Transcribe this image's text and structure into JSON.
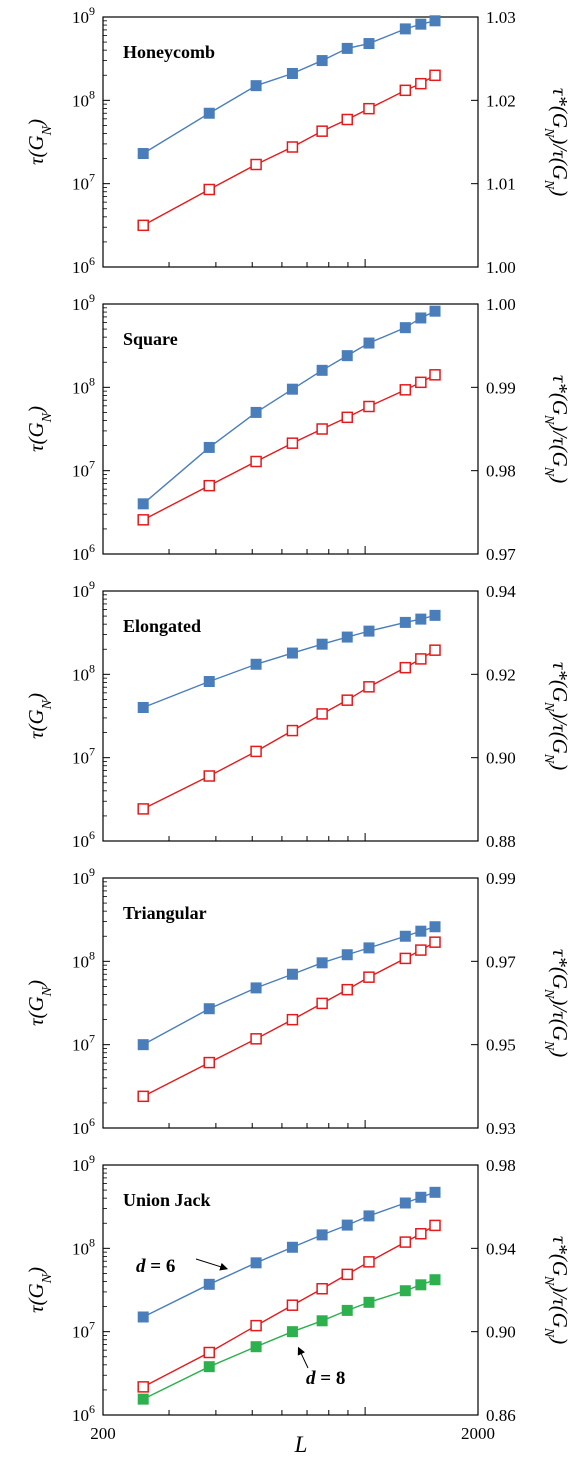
{
  "colors": {
    "blue_series": "#4a7ebb",
    "red_series": "#e41a1c",
    "green_series": "#2db04e",
    "axis": "#000000"
  },
  "chart_data": [
    {
      "type": "line",
      "title": "Honeycomb",
      "ylabel": "τ(G_N)",
      "ylabel_right": "τ*(G_N)/τ(G_N)",
      "xscale": "log",
      "xlim": [
        200,
        2000
      ],
      "yscale": "log",
      "ylim": [
        1000000,
        1000000000
      ],
      "yticks": [
        "10^6",
        "10^7",
        "10^8",
        "10^9"
      ],
      "ylim_right": [
        1.0,
        1.03
      ],
      "yticks_right": [
        "1.00",
        "1.01",
        "1.02",
        "1.03"
      ],
      "series": [
        {
          "axis": "left",
          "marker": "filled-square",
          "color": "#4a7ebb",
          "x": [
            256,
            384,
            512,
            640,
            768,
            896,
            1024,
            1280,
            1408,
            1536
          ],
          "y": [
            23000000,
            70000000,
            150000000,
            210000000,
            300000000,
            420000000,
            480000000,
            720000000,
            820000000,
            900000000
          ]
        },
        {
          "axis": "right",
          "marker": "open-square",
          "color": "#e41a1c",
          "x": [
            256,
            384,
            512,
            640,
            768,
            896,
            1024,
            1280,
            1408,
            1536
          ],
          "y": [
            1.005,
            1.0093,
            1.0123,
            1.0144,
            1.0163,
            1.0177,
            1.019,
            1.0212,
            1.022,
            1.023
          ]
        }
      ]
    },
    {
      "type": "line",
      "title": "Square",
      "ylabel": "τ(G_N)",
      "ylabel_right": "τ*(G_N)/τ(G_N)",
      "xscale": "log",
      "xlim": [
        200,
        2000
      ],
      "yscale": "log",
      "ylim": [
        1000000,
        1000000000
      ],
      "yticks": [
        "10^6",
        "10^7",
        "10^8",
        "10^9"
      ],
      "ylim_right": [
        0.97,
        1.0
      ],
      "yticks_right": [
        "0.97",
        "0.98",
        "0.99",
        "1.00"
      ],
      "series": [
        {
          "axis": "left",
          "marker": "filled-square",
          "color": "#4a7ebb",
          "x": [
            256,
            384,
            512,
            640,
            768,
            896,
            1024,
            1280,
            1408,
            1536
          ],
          "y": [
            4000000,
            19000000,
            50000000,
            95000000,
            160000000,
            240000000,
            340000000,
            520000000,
            680000000,
            820000000
          ]
        },
        {
          "axis": "right",
          "marker": "open-square",
          "color": "#e41a1c",
          "x": [
            256,
            384,
            512,
            640,
            768,
            896,
            1024,
            1280,
            1408,
            1536
          ],
          "y": [
            0.9741,
            0.9782,
            0.9811,
            0.9833,
            0.985,
            0.9864,
            0.9877,
            0.9897,
            0.9906,
            0.9915
          ]
        }
      ]
    },
    {
      "type": "line",
      "title": "Elongated",
      "ylabel": "τ(G_N)",
      "ylabel_right": "τ*(G_N)/τ(G_N)",
      "xscale": "log",
      "xlim": [
        200,
        2000
      ],
      "yscale": "log",
      "ylim": [
        1000000,
        1000000000
      ],
      "yticks": [
        "10^6",
        "10^7",
        "10^8",
        "10^9"
      ],
      "ylim_right": [
        0.88,
        0.94
      ],
      "yticks_right": [
        "0.88",
        "0.90",
        "0.92",
        "0.94"
      ],
      "series": [
        {
          "axis": "left",
          "marker": "filled-square",
          "color": "#4a7ebb",
          "x": [
            256,
            384,
            512,
            640,
            768,
            896,
            1024,
            1280,
            1408,
            1536
          ],
          "y": [
            40000000,
            82000000,
            132000000,
            180000000,
            230000000,
            280000000,
            330000000,
            420000000,
            460000000,
            510000000
          ]
        },
        {
          "axis": "right",
          "marker": "open-square",
          "color": "#e41a1c",
          "x": [
            256,
            384,
            512,
            640,
            768,
            896,
            1024,
            1280,
            1408,
            1536
          ],
          "y": [
            0.8877,
            0.8956,
            0.9015,
            0.9065,
            0.9105,
            0.9138,
            0.917,
            0.9216,
            0.9237,
            0.9258
          ]
        }
      ]
    },
    {
      "type": "line",
      "title": "Triangular",
      "ylabel": "τ(G_N)",
      "ylabel_right": "τ*(G_N)/τ(G_N)",
      "xscale": "log",
      "xlim": [
        200,
        2000
      ],
      "yscale": "log",
      "ylim": [
        1000000,
        1000000000
      ],
      "yticks": [
        "10^6",
        "10^7",
        "10^8",
        "10^9"
      ],
      "ylim_right": [
        0.93,
        0.99
      ],
      "yticks_right": [
        "0.93",
        "0.95",
        "0.97",
        "0.99"
      ],
      "series": [
        {
          "axis": "left",
          "marker": "filled-square",
          "color": "#4a7ebb",
          "x": [
            256,
            384,
            512,
            640,
            768,
            896,
            1024,
            1280,
            1408,
            1536
          ],
          "y": [
            10000000,
            27000000,
            48000000,
            70000000,
            96000000,
            120000000,
            145000000,
            200000000,
            230000000,
            260000000
          ]
        },
        {
          "axis": "right",
          "marker": "open-square",
          "color": "#e41a1c",
          "x": [
            256,
            384,
            512,
            640,
            768,
            896,
            1024,
            1280,
            1408,
            1536
          ],
          "y": [
            0.9376,
            0.9457,
            0.9514,
            0.956,
            0.9599,
            0.9632,
            0.9662,
            0.9707,
            0.9727,
            0.9746
          ]
        }
      ]
    },
    {
      "type": "line",
      "title": "Union Jack",
      "ylabel": "τ(G_N)",
      "ylabel_right": "τ*(G_N)/τ(G_N)",
      "xlabel": "L",
      "xscale": "log",
      "xlim": [
        200,
        2000
      ],
      "xticks": [
        "200",
        "2000"
      ],
      "yscale": "log",
      "ylim": [
        1000000,
        1000000000
      ],
      "yticks": [
        "10^6",
        "10^7",
        "10^8",
        "10^9"
      ],
      "ylim_right": [
        0.86,
        0.98
      ],
      "yticks_right": [
        "0.86",
        "0.90",
        "0.94",
        "0.98"
      ],
      "annotations": [
        "d = 6",
        "d = 8"
      ],
      "series": [
        {
          "axis": "left",
          "marker": "filled-square",
          "color": "#4a7ebb",
          "x": [
            256,
            384,
            512,
            640,
            768,
            896,
            1024,
            1280,
            1408,
            1536
          ],
          "y": [
            15000000,
            37000000,
            67000000,
            103000000,
            145000000,
            190000000,
            245000000,
            350000000,
            410000000,
            470000000
          ]
        },
        {
          "axis": "right",
          "marker": "open-square",
          "color": "#e41a1c",
          "x": [
            256,
            384,
            512,
            640,
            768,
            896,
            1024,
            1280,
            1408,
            1536
          ],
          "y": [
            0.8735,
            0.89,
            0.9029,
            0.9127,
            0.9206,
            0.9275,
            0.9335,
            0.943,
            0.947,
            0.951
          ]
        },
        {
          "axis": "left",
          "marker": "filled-square",
          "color": "#2db04e",
          "x": [
            256,
            384,
            512,
            640,
            768,
            896,
            1024,
            1280,
            1408,
            1536
          ],
          "y": [
            1550000,
            3800000,
            6600000,
            10000000,
            13500000,
            18000000,
            22500000,
            31000000,
            36500000,
            42000000
          ]
        }
      ]
    }
  ]
}
